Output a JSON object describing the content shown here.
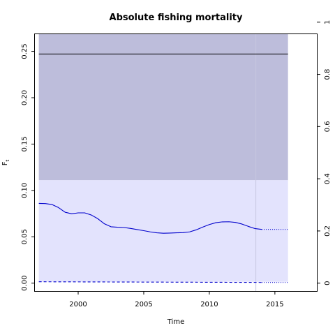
{
  "chart_data": {
    "type": "line",
    "title": "Absolute fishing mortality",
    "xlabel": "Time",
    "ylabel": "F",
    "ylabel_subscript": "t",
    "xlim": [
      1996.7,
      2018.2
    ],
    "ylim": [
      -0.0085,
      0.2685
    ],
    "xticks": [
      "2000",
      "2005",
      "2010",
      "2015"
    ],
    "yticks": [
      "0.00",
      "0.05",
      "0.10",
      "0.15",
      "0.20",
      "0.25"
    ],
    "y2lim": [
      -0.0302,
      0.9539
    ],
    "y2ticks": [
      "0",
      "0.2",
      "0.4",
      "0.6",
      "0.8",
      "1"
    ],
    "grid": false,
    "bands": [
      {
        "x": [
          1997.0,
          2016.0
        ],
        "y": [
          0.111,
          0.2685
        ],
        "color": "#bdbddb"
      },
      {
        "x": [
          1997.0,
          2016.0
        ],
        "y": [
          0.0015,
          0.111
        ],
        "color": "#e3e3fd"
      }
    ],
    "vline": {
      "x": 2013.55,
      "color": "#c6c6e0"
    },
    "hline_secondary_axis": {
      "y": 0.878,
      "x": [
        1997.0,
        2016.0
      ],
      "color": "#000000"
    },
    "series": [
      {
        "style": "solid",
        "color": "#0000cc",
        "x": [
          1997.0,
          1997.5,
          1998.0,
          1998.5,
          1999.0,
          1999.5,
          2000.0,
          2000.5,
          2001.0,
          2001.5,
          2002.0,
          2002.5,
          2003.0,
          2003.5,
          2004.0,
          2004.5,
          2005.0,
          2005.5,
          2006.0,
          2006.5,
          2007.0,
          2007.5,
          2008.0,
          2008.5,
          2009.0,
          2009.5,
          2010.0,
          2010.5,
          2011.0,
          2011.5,
          2012.0,
          2012.5,
          2013.0,
          2013.5,
          2014.0
        ],
        "values": [
          0.086,
          0.0858,
          0.0848,
          0.0815,
          0.0765,
          0.0748,
          0.0758,
          0.0758,
          0.0735,
          0.0695,
          0.064,
          0.0608,
          0.0603,
          0.06,
          0.059,
          0.0578,
          0.0566,
          0.0553,
          0.0543,
          0.0538,
          0.054,
          0.0543,
          0.0545,
          0.0553,
          0.0575,
          0.0605,
          0.0632,
          0.0652,
          0.0661,
          0.0662,
          0.0655,
          0.0637,
          0.0611,
          0.0588,
          0.058
        ]
      },
      {
        "style": "dotted",
        "color": "#0000cc",
        "x": [
          2014.0,
          2016.0
        ],
        "values": [
          0.058,
          0.058
        ]
      },
      {
        "style": "dashed",
        "color": "#0000cc",
        "x": [
          1997.0,
          2014.0
        ],
        "values": [
          0.0015,
          0.0008
        ]
      },
      {
        "style": "dotted",
        "color": "#0000cc",
        "x": [
          2014.0,
          2016.0
        ],
        "values": [
          0.0008,
          0.0008
        ]
      }
    ]
  }
}
